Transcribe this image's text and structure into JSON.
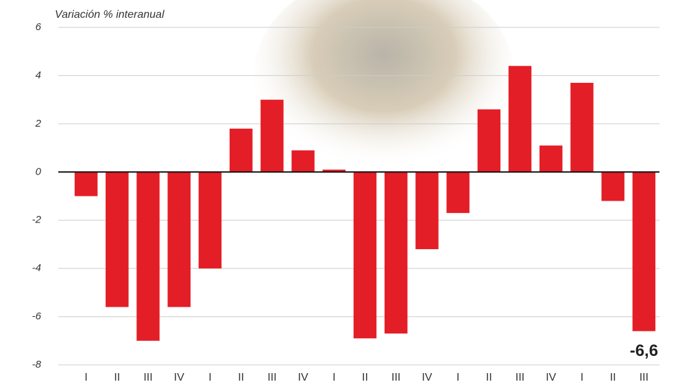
{
  "chart_data": {
    "type": "bar",
    "subtitle": "Variación % interanual",
    "categories": [
      "I",
      "II",
      "III",
      "IV",
      "I",
      "II",
      "III",
      "IV",
      "I",
      "II",
      "III",
      "IV",
      "I",
      "II",
      "III",
      "IV",
      "I",
      "II",
      "III"
    ],
    "values": [
      -1.0,
      -5.6,
      -7.0,
      -5.6,
      -4.0,
      1.8,
      3.0,
      0.9,
      0.1,
      -6.9,
      -6.7,
      -3.2,
      -1.7,
      2.6,
      4.4,
      1.1,
      3.7,
      -1.2,
      -6.6
    ],
    "value_labels": [
      null,
      null,
      null,
      null,
      null,
      null,
      null,
      null,
      null,
      null,
      null,
      null,
      null,
      null,
      null,
      null,
      null,
      null,
      "-6,6"
    ],
    "color": "#e41e26",
    "ylim": [
      -8,
      6
    ],
    "yticks": [
      6,
      4,
      2,
      0,
      -2,
      -4,
      -6,
      -8
    ],
    "grid": true
  }
}
